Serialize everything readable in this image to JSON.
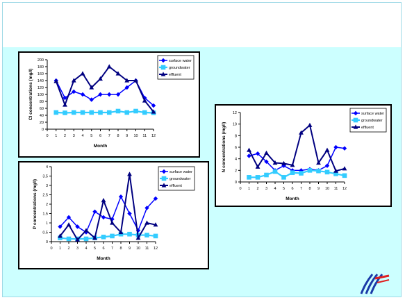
{
  "colors": {
    "slide_background": "#ccffff",
    "surface_water": "#0000ff",
    "groundwater": "#33ccff",
    "effluent": "#000080"
  },
  "logo": {
    "icon": "wave-stripes-logo-icon"
  },
  "chart_data": [
    {
      "type": "line",
      "title": "",
      "xlabel": "Month",
      "ylabel": "Cl concentrations (mg/l)",
      "x": [
        1,
        2,
        3,
        4,
        5,
        6,
        7,
        8,
        9,
        10,
        11,
        12
      ],
      "x_ticks": [
        "0",
        "1",
        "2",
        "3",
        "4",
        "5",
        "6",
        "7",
        "8",
        "9",
        "10",
        "11",
        "12"
      ],
      "y_ticks": [
        "0",
        "20",
        "40",
        "60",
        "80",
        "100",
        "120",
        "140",
        "160",
        "180",
        "200"
      ],
      "xlim": [
        0,
        12
      ],
      "ylim": [
        0,
        200
      ],
      "legend": "top-right",
      "series": [
        {
          "name": "surface water",
          "marker": "diamond",
          "values": [
            140,
            90,
            108,
            100,
            85,
            100,
            100,
            100,
            120,
            140,
            90,
            68
          ]
        },
        {
          "name": "groundwater",
          "marker": "square",
          "values": [
            48,
            47,
            48,
            48,
            48,
            48,
            48,
            52,
            48,
            52,
            48,
            47
          ]
        },
        {
          "name": "effluent",
          "marker": "triangle",
          "values": [
            138,
            70,
            140,
            160,
            120,
            145,
            180,
            160,
            140,
            140,
            82,
            50
          ]
        }
      ]
    },
    {
      "type": "line",
      "title": "",
      "xlabel": "Month",
      "ylabel": "P concentrations (mg/l)",
      "x": [
        1,
        2,
        3,
        4,
        5,
        6,
        7,
        8,
        9,
        10,
        11,
        12
      ],
      "x_ticks": [
        "0",
        "1",
        "2",
        "3",
        "4",
        "5",
        "6",
        "7",
        "8",
        "9",
        "10",
        "11",
        "12"
      ],
      "y_ticks": [
        "0",
        "0.5",
        "1",
        "1.5",
        "2",
        "2.5",
        "3",
        "3.5",
        "4"
      ],
      "xlim": [
        0,
        12
      ],
      "ylim": [
        0,
        4
      ],
      "legend": "top-right",
      "series": [
        {
          "name": "surface water",
          "marker": "diamond",
          "values": [
            0.8,
            1.3,
            0.8,
            0.5,
            1.6,
            1.3,
            1.2,
            2.4,
            1.5,
            0.6,
            1.8,
            2.3
          ]
        },
        {
          "name": "groundwater",
          "marker": "square",
          "values": [
            0.2,
            0.15,
            0.15,
            0.15,
            0.2,
            0.25,
            0.3,
            0.4,
            0.4,
            0.35,
            0.35,
            0.3
          ]
        },
        {
          "name": "effluent",
          "marker": "triangle",
          "values": [
            0.3,
            0.9,
            0.1,
            0.6,
            0.2,
            2.2,
            1.0,
            0.5,
            3.6,
            0.2,
            1.0,
            0.9
          ]
        }
      ]
    },
    {
      "type": "line",
      "title": "",
      "xlabel": "Month",
      "ylabel": "N concentrations (mg/l)",
      "x": [
        1,
        2,
        3,
        4,
        5,
        6,
        7,
        8,
        9,
        10,
        11,
        12
      ],
      "x_ticks": [
        "0",
        "1",
        "2",
        "3",
        "4",
        "5",
        "6",
        "7",
        "8",
        "9",
        "10",
        "11",
        "12"
      ],
      "y_ticks": [
        "0",
        "2",
        "4",
        "6",
        "8",
        "10",
        "12"
      ],
      "xlim": [
        0,
        12
      ],
      "ylim": [
        0,
        12
      ],
      "legend": "top-right",
      "series": [
        {
          "name": "surface water",
          "marker": "diamond",
          "values": [
            4.5,
            4.9,
            3.5,
            2.0,
            2.8,
            2.0,
            2.0,
            2.2,
            2.0,
            2.8,
            6.0,
            5.8
          ]
        },
        {
          "name": "groundwater",
          "marker": "square",
          "values": [
            0.8,
            0.8,
            1.2,
            1.8,
            0.8,
            1.6,
            1.5,
            2.0,
            1.9,
            1.7,
            1.4,
            1.1
          ]
        },
        {
          "name": "effluent",
          "marker": "triangle",
          "values": [
            5.5,
            2.6,
            5.0,
            3.3,
            3.2,
            2.9,
            8.5,
            9.8,
            3.3,
            5.5,
            1.9,
            2.3
          ]
        }
      ]
    }
  ]
}
